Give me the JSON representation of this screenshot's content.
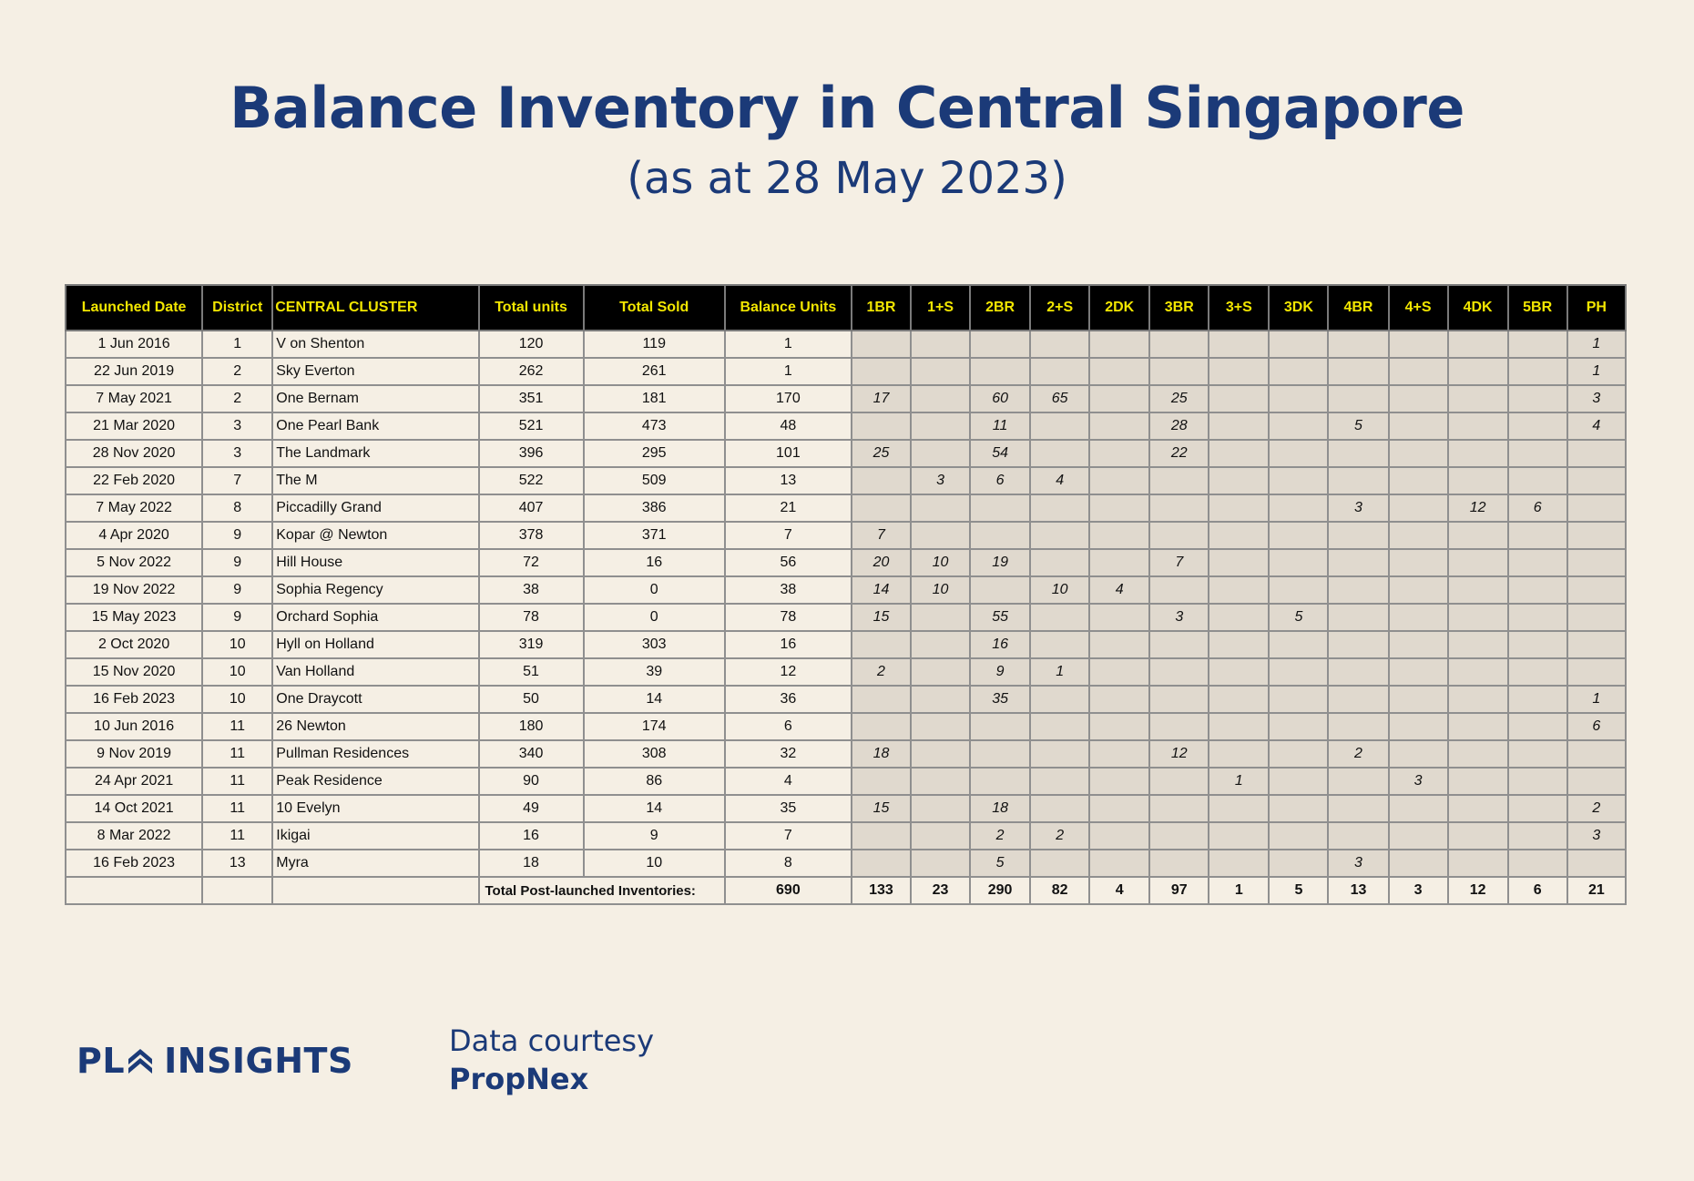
{
  "title": "Balance Inventory in Central Singapore",
  "subtitle": "(as at 28 May 2023)",
  "table": {
    "headers": [
      "Launched Date",
      "District",
      "CENTRAL CLUSTER",
      "Total units",
      "Total Sold",
      "Balance Units",
      "1BR",
      "1+S",
      "2BR",
      "2+S",
      "2DK",
      "3BR",
      "3+S",
      "3DK",
      "4BR",
      "4+S",
      "4DK",
      "5BR",
      "PH"
    ],
    "rows": [
      [
        "1 Jun 2016",
        "1",
        "V on Shenton",
        "120",
        "119",
        "1",
        "",
        "",
        "",
        "",
        "",
        "",
        "",
        "",
        "",
        "",
        "",
        "",
        "1"
      ],
      [
        "22 Jun 2019",
        "2",
        "Sky Everton",
        "262",
        "261",
        "1",
        "",
        "",
        "",
        "",
        "",
        "",
        "",
        "",
        "",
        "",
        "",
        "",
        "1"
      ],
      [
        "7 May 2021",
        "2",
        "One Bernam",
        "351",
        "181",
        "170",
        "17",
        "",
        "60",
        "65",
        "",
        "25",
        "",
        "",
        "",
        "",
        "",
        "",
        "3"
      ],
      [
        "21 Mar 2020",
        "3",
        "One Pearl Bank",
        "521",
        "473",
        "48",
        "",
        "",
        "11",
        "",
        "",
        "28",
        "",
        "",
        "5",
        "",
        "",
        "",
        "4"
      ],
      [
        "28 Nov 2020",
        "3",
        "The Landmark",
        "396",
        "295",
        "101",
        "25",
        "",
        "54",
        "",
        "",
        "22",
        "",
        "",
        "",
        "",
        "",
        "",
        ""
      ],
      [
        "22 Feb 2020",
        "7",
        "The M",
        "522",
        "509",
        "13",
        "",
        "3",
        "6",
        "4",
        "",
        "",
        "",
        "",
        "",
        "",
        "",
        "",
        ""
      ],
      [
        "7 May 2022",
        "8",
        "Piccadilly Grand",
        "407",
        "386",
        "21",
        "",
        "",
        "",
        "",
        "",
        "",
        "",
        "",
        "3",
        "",
        "12",
        "6",
        ""
      ],
      [
        "4 Apr 2020",
        "9",
        "Kopar @ Newton",
        "378",
        "371",
        "7",
        "7",
        "",
        "",
        "",
        "",
        "",
        "",
        "",
        "",
        "",
        "",
        "",
        ""
      ],
      [
        "5 Nov 2022",
        "9",
        "Hill House",
        "72",
        "16",
        "56",
        "20",
        "10",
        "19",
        "",
        "",
        "7",
        "",
        "",
        "",
        "",
        "",
        "",
        ""
      ],
      [
        "19 Nov 2022",
        "9",
        "Sophia Regency",
        "38",
        "0",
        "38",
        "14",
        "10",
        "",
        "10",
        "4",
        "",
        "",
        "",
        "",
        "",
        "",
        "",
        ""
      ],
      [
        "15 May 2023",
        "9",
        "Orchard Sophia",
        "78",
        "0",
        "78",
        "15",
        "",
        "55",
        "",
        "",
        "3",
        "",
        "5",
        "",
        "",
        "",
        "",
        ""
      ],
      [
        "2 Oct 2020",
        "10",
        "Hyll on Holland",
        "319",
        "303",
        "16",
        "",
        "",
        "16",
        "",
        "",
        "",
        "",
        "",
        "",
        "",
        "",
        "",
        ""
      ],
      [
        "15 Nov 2020",
        "10",
        "Van Holland",
        "51",
        "39",
        "12",
        "2",
        "",
        "9",
        "1",
        "",
        "",
        "",
        "",
        "",
        "",
        "",
        "",
        ""
      ],
      [
        "16 Feb 2023",
        "10",
        "One Draycott",
        "50",
        "14",
        "36",
        "",
        "",
        "35",
        "",
        "",
        "",
        "",
        "",
        "",
        "",
        "",
        "",
        "1"
      ],
      [
        "10 Jun 2016",
        "11",
        "26 Newton",
        "180",
        "174",
        "6",
        "",
        "",
        "",
        "",
        "",
        "",
        "",
        "",
        "",
        "",
        "",
        "",
        "6"
      ],
      [
        "9 Nov 2019",
        "11",
        "Pullman Residences",
        "340",
        "308",
        "32",
        "18",
        "",
        "",
        "",
        "",
        "12",
        "",
        "",
        "2",
        "",
        "",
        "",
        ""
      ],
      [
        "24 Apr 2021",
        "11",
        "Peak Residence",
        "90",
        "86",
        "4",
        "",
        "",
        "",
        "",
        "",
        "",
        "1",
        "",
        "",
        "3",
        "",
        "",
        ""
      ],
      [
        "14 Oct 2021",
        "11",
        "10 Evelyn",
        "49",
        "14",
        "35",
        "15",
        "",
        "18",
        "",
        "",
        "",
        "",
        "",
        "",
        "",
        "",
        "",
        "2"
      ],
      [
        "8 Mar 2022",
        "11",
        "Ikigai",
        "16",
        "9",
        "7",
        "",
        "",
        "2",
        "2",
        "",
        "",
        "",
        "",
        "",
        "",
        "",
        "",
        "3"
      ],
      [
        "16 Feb 2023",
        "13",
        "Myra",
        "18",
        "10",
        "8",
        "",
        "",
        "5",
        "",
        "",
        "",
        "",
        "",
        "3",
        "",
        "",
        "",
        ""
      ]
    ],
    "total_label": "Total Post-launched Inventories:",
    "totals": [
      "690",
      "133",
      "23",
      "290",
      "82",
      "4",
      "97",
      "1",
      "5",
      "13",
      "3",
      "12",
      "6",
      "21"
    ]
  },
  "footer": {
    "logo_left": "PL",
    "logo_right": "INSIGHTS",
    "courtesy_line1": "Data courtesy",
    "courtesy_line2": "PropNex"
  },
  "colors": {
    "background": "#f5efe4",
    "title": "#1b3a78",
    "header_bg": "#000000",
    "header_text": "#f2e600",
    "shaded_cell": "#e0d9ce"
  },
  "icons": {
    "logo_mark": "chevron-house-icon"
  }
}
